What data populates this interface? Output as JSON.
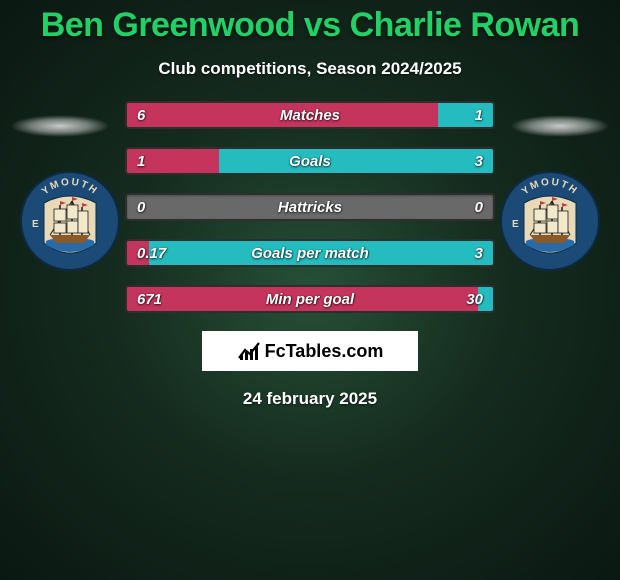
{
  "title_color": "#21d167",
  "player1": "Ben Greenwood",
  "vs": " vs ",
  "player2": "Charlie Rowan",
  "subtitle": "Club competitions, Season 2024/2025",
  "left_color": "#c4345d",
  "right_color": "#24bcbf",
  "bars": [
    {
      "label": "Matches",
      "left": "6",
      "right": "1",
      "left_pct": 85,
      "right_pct": 15
    },
    {
      "label": "Goals",
      "left": "1",
      "right": "3",
      "left_pct": 25,
      "right_pct": 75
    },
    {
      "label": "Hattricks",
      "left": "0",
      "right": "0",
      "left_pct": 0,
      "right_pct": 0
    },
    {
      "label": "Goals per match",
      "left": "0.17",
      "right": "3",
      "left_pct": 6,
      "right_pct": 94
    },
    {
      "label": "Min per goal",
      "left": "671",
      "right": "30",
      "left_pct": 96,
      "right_pct": 4
    }
  ],
  "brand": "FcTables.com",
  "date": "24 february 2025",
  "crest": {
    "outer_fill": "#1a4a75",
    "outer_stroke": "#0d2a42",
    "inner_fill": "#e8d9b8",
    "ship_hull": "#8a5a2a",
    "sails": "#f2e8cc",
    "rigging": "#1a1a1a",
    "waves": "#2a6aa8",
    "top_text": "YMOUTH",
    "top_letter_left": "E",
    "text_color": "#e8d9b8"
  }
}
